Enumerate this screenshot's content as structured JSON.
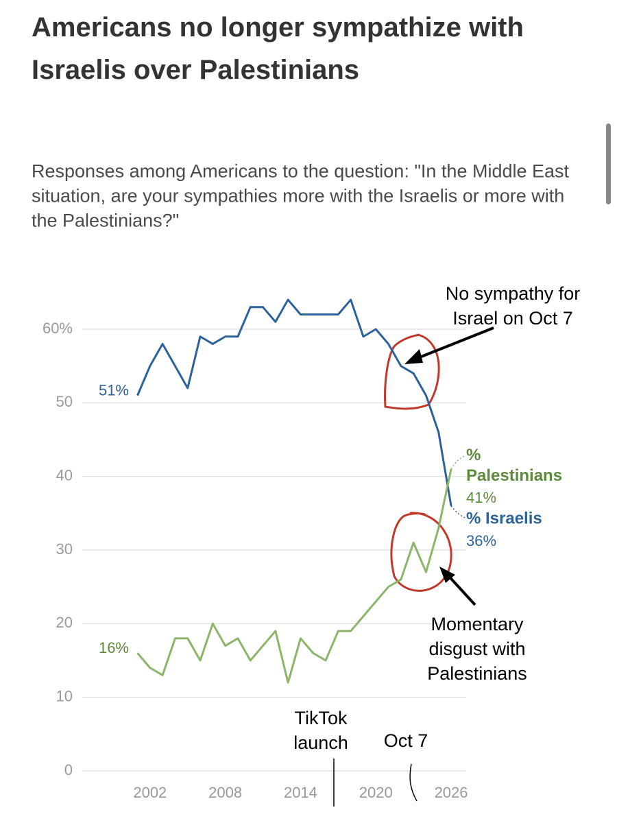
{
  "chart_data": {
    "type": "line",
    "title": "Americans no longer sympathize with Israelis over Palestinians",
    "subtitle": "Responses among Americans to the question: \"In the Middle East situation, are your sympathies more with the Israelis or more with the Palestinians?\"",
    "x": [
      2001,
      2002,
      2003,
      2004,
      2005,
      2006,
      2007,
      2008,
      2009,
      2010,
      2011,
      2012,
      2013,
      2014,
      2015,
      2016,
      2017,
      2018,
      2019,
      2020,
      2021,
      2022,
      2023,
      2024,
      2025,
      2026
    ],
    "series": [
      {
        "name": "% Israelis",
        "color": "#2d6199",
        "values": [
          51,
          55,
          58,
          55,
          52,
          59,
          58,
          59,
          59,
          63,
          63,
          61,
          64,
          62,
          62,
          62,
          62,
          64,
          59,
          60,
          58,
          55,
          54,
          51,
          46,
          36
        ],
        "value_labels": [
          "51%",
          null,
          null,
          null,
          null,
          null,
          null,
          null,
          null,
          null,
          null,
          null,
          null,
          null,
          null,
          null,
          null,
          null,
          null,
          null,
          null,
          null,
          null,
          null,
          null,
          "36%"
        ]
      },
      {
        "name": "% Palestinians",
        "color": "#8cb56a",
        "values": [
          16,
          14,
          13,
          18,
          18,
          15,
          20,
          17,
          18,
          15,
          17,
          19,
          12,
          18,
          16,
          15,
          19,
          19,
          21,
          23,
          25,
          26,
          31,
          27,
          33,
          41
        ],
        "value_labels": [
          "16%",
          null,
          null,
          null,
          null,
          null,
          null,
          null,
          null,
          null,
          null,
          null,
          null,
          null,
          null,
          null,
          null,
          null,
          null,
          null,
          null,
          null,
          null,
          null,
          null,
          "41%"
        ]
      }
    ],
    "xlim": [
      1996.6,
      2027.2
    ],
    "xticks": [
      2002,
      2008,
      2014,
      2020,
      2026
    ],
    "ylim": [
      0,
      60
    ],
    "yticks": [
      0,
      10,
      20,
      30,
      40,
      50,
      {
        "value": 60,
        "label": "60%"
      }
    ],
    "grid": true,
    "annotations": [
      {
        "lines": [
          "No sympathy for",
          "Israel on Oct 7"
        ]
      },
      {
        "lines": [
          "Momentary",
          "disgust with",
          "Palestinians"
        ]
      },
      {
        "lines": [
          "TikTok",
          "launch"
        ]
      },
      {
        "lines": [
          "Oct 7"
        ]
      }
    ]
  }
}
